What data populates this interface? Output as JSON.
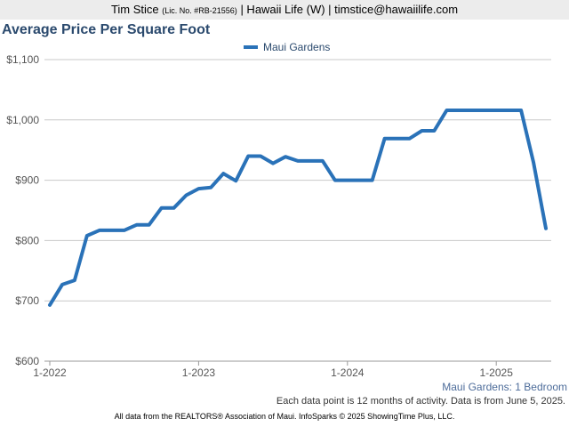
{
  "header": {
    "name": "Tim Stice",
    "license": "(Lic. No. #RB-21556)",
    "rest": "| Hawaii Life (W) | timstice@hawaiilife.com"
  },
  "footer": {
    "subset": "Maui Gardens: 1 Bedroom",
    "data_note": "Each data point is 12 months of activity. Data is from June 5, 2025.",
    "source": "All data from the REALTORS® Association of Maui. InfoSparks © 2025 ShowingTime Plus, LLC."
  },
  "chart_data": {
    "type": "line",
    "title": "Average Price Per Square Foot",
    "xlabel": "",
    "ylabel": "",
    "ylim": [
      600,
      1100
    ],
    "yticks": [
      600,
      700,
      800,
      900,
      1000,
      1100
    ],
    "ytick_labels": [
      "$600",
      "$700",
      "$800",
      "$900",
      "$1,000",
      "$1,100"
    ],
    "xticks": [
      "1-2022",
      "1-2023",
      "1-2024",
      "1-2025"
    ],
    "x": [
      "1-2022",
      "2-2022",
      "3-2022",
      "4-2022",
      "5-2022",
      "6-2022",
      "7-2022",
      "8-2022",
      "9-2022",
      "10-2022",
      "11-2022",
      "12-2022",
      "1-2023",
      "2-2023",
      "3-2023",
      "4-2023",
      "5-2023",
      "6-2023",
      "7-2023",
      "8-2023",
      "9-2023",
      "10-2023",
      "11-2023",
      "12-2023",
      "1-2024",
      "2-2024",
      "3-2024",
      "4-2024",
      "5-2024",
      "6-2024",
      "7-2024",
      "8-2024",
      "9-2024",
      "10-2024",
      "11-2024",
      "12-2024",
      "1-2025",
      "2-2025",
      "3-2025",
      "4-2025",
      "5-2025"
    ],
    "legend_position": "top-center",
    "grid": true,
    "series": [
      {
        "name": "Maui Gardens",
        "color": "#2a72b8",
        "values": [
          693,
          727,
          734,
          808,
          817,
          817,
          817,
          826,
          826,
          854,
          854,
          875,
          886,
          888,
          911,
          899,
          940,
          940,
          928,
          939,
          932,
          932,
          932,
          900,
          900,
          900,
          900,
          969,
          969,
          969,
          982,
          982,
          1016,
          1016,
          1016,
          1016,
          1016,
          1016,
          1016,
          930,
          820
        ]
      }
    ]
  }
}
